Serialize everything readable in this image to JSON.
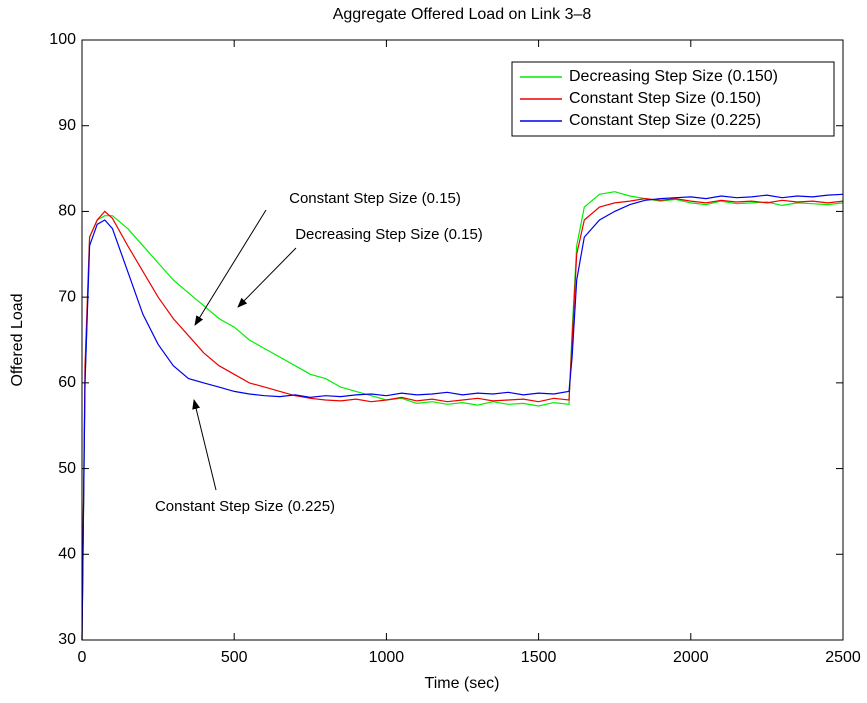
{
  "chart_data": {
    "type": "line",
    "title": "Aggregate Offered Load on Link 3–8",
    "x_label": "Time (sec)",
    "y_label": "Offered Load",
    "xlim": [
      0,
      2500
    ],
    "xticks": [
      0,
      500,
      1000,
      1500,
      2000,
      2500
    ],
    "ylim": [
      30,
      100
    ],
    "yticks": [
      30,
      40,
      50,
      60,
      70,
      80,
      90,
      100
    ],
    "legend": "upper right",
    "x": [
      0,
      10,
      25,
      50,
      75,
      100,
      150,
      200,
      250,
      300,
      350,
      400,
      450,
      500,
      550,
      600,
      650,
      700,
      750,
      800,
      850,
      900,
      950,
      1000,
      1050,
      1100,
      1150,
      1200,
      1250,
      1300,
      1350,
      1400,
      1450,
      1500,
      1550,
      1600,
      1610,
      1625,
      1650,
      1700,
      1750,
      1800,
      1850,
      1900,
      1950,
      2000,
      2050,
      2100,
      2150,
      2200,
      2250,
      2300,
      2350,
      2400,
      2450,
      2500
    ],
    "series": [
      {
        "name": "Decreasing Step Size (0.150)",
        "color": "#00ee00",
        "values": [
          30,
          60,
          77,
          79,
          79.5,
          79.5,
          78,
          76,
          74,
          72,
          70.5,
          69,
          67.5,
          66.5,
          65,
          64,
          63,
          62,
          61,
          60.5,
          59.5,
          59,
          58.5,
          58,
          58.2,
          57.6,
          57.8,
          57.5,
          57.7,
          57.4,
          57.8,
          57.5,
          57.6,
          57.3,
          57.7,
          57.5,
          66,
          76,
          80.5,
          82,
          82.3,
          81.8,
          81.5,
          81.2,
          81.4,
          81,
          80.8,
          81.2,
          80.9,
          81,
          81.1,
          80.7,
          81,
          80.9,
          80.8,
          81
        ]
      },
      {
        "name": "Constant Step Size (0.150)",
        "color": "#ee0000",
        "values": [
          30,
          62,
          77,
          79,
          80,
          79.2,
          76,
          73,
          70,
          67.5,
          65.5,
          63.5,
          62,
          61,
          60,
          59.5,
          59,
          58.5,
          58.2,
          58,
          57.9,
          58.1,
          57.8,
          58,
          58.3,
          57.9,
          58.1,
          57.8,
          58,
          58.2,
          57.9,
          58,
          58.1,
          57.8,
          58.2,
          58,
          65,
          75,
          79,
          80.5,
          81,
          81.2,
          81.5,
          81.3,
          81.5,
          81.2,
          81,
          81.3,
          81.1,
          81.2,
          81,
          81.3,
          81.1,
          81.2,
          81,
          81.2
        ]
      },
      {
        "name": "Constant Step Size (0.225)",
        "color": "#0000ee",
        "values": [
          30,
          60,
          76,
          78.5,
          79,
          78,
          73,
          68,
          64.5,
          62,
          60.5,
          60,
          59.5,
          59,
          58.7,
          58.5,
          58.4,
          58.6,
          58.3,
          58.5,
          58.4,
          58.6,
          58.7,
          58.5,
          58.8,
          58.6,
          58.7,
          58.9,
          58.6,
          58.8,
          58.7,
          58.9,
          58.6,
          58.8,
          58.7,
          59,
          63,
          72,
          77,
          79,
          80,
          80.8,
          81.3,
          81.5,
          81.6,
          81.7,
          81.5,
          81.8,
          81.6,
          81.7,
          81.9,
          81.6,
          81.8,
          81.7,
          81.9,
          82
        ]
      }
    ],
    "annotations": [
      "Constant Step Size (0.15)",
      "Decreasing Step Size (0.15)",
      "Constant Step Size (0.225)"
    ]
  }
}
